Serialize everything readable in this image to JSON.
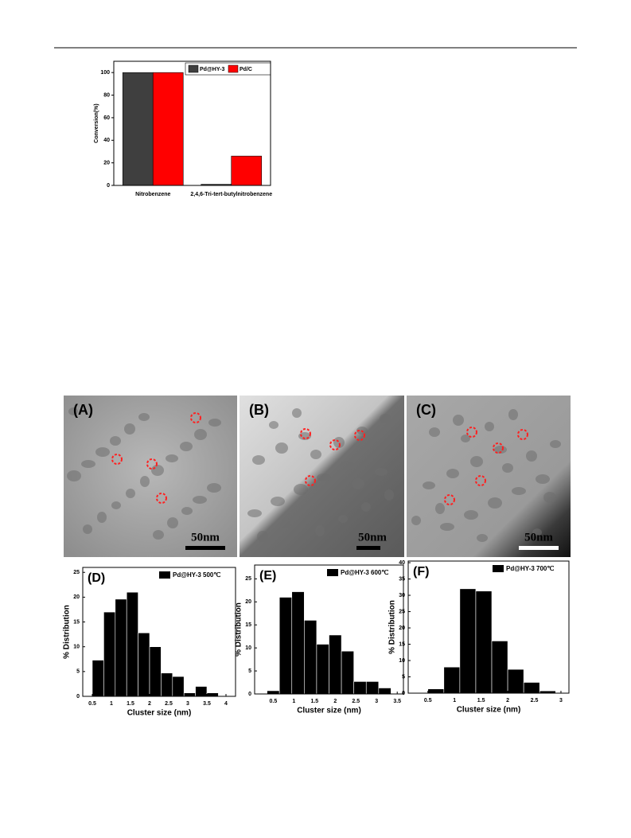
{
  "chart_data": [
    {
      "type": "bar",
      "ylabel": "Conversion(%)",
      "categories": [
        "Nitrobenzene",
        "2,4,6-Tri-tert-butylnitrobenzene"
      ],
      "series": [
        {
          "name": "Pd@HY-3",
          "color": "#3f3f3f",
          "values": [
            100,
            1
          ]
        },
        {
          "name": "Pd/C",
          "color": "#ff0000",
          "values": [
            100,
            26
          ]
        }
      ],
      "ylim": [
        0,
        110
      ],
      "yticks": [
        0,
        20,
        40,
        60,
        80,
        100
      ]
    },
    {
      "type": "histogram",
      "panel_label": "(D)",
      "legend": "Pd@HY-3 500℃",
      "color": "#000000",
      "xlabel": "Cluster size (nm)",
      "ylabel": "% Distribution",
      "bins": [
        0.5,
        0.8,
        1.1,
        1.4,
        1.7,
        2.0,
        2.3,
        2.6,
        2.9,
        3.2,
        3.5,
        3.8
      ],
      "values": [
        7.3,
        17,
        19.6,
        21,
        12.8,
        10,
        4.7,
        4,
        0.7,
        2,
        0.7
      ],
      "xlim": [
        0.25,
        4.25
      ],
      "xticks": [
        0.5,
        1.0,
        1.5,
        2.0,
        2.5,
        3.0,
        3.5,
        4.0
      ],
      "ylim": [
        0,
        26
      ],
      "yticks": [
        0,
        5,
        10,
        15,
        20,
        25
      ]
    },
    {
      "type": "histogram",
      "panel_label": "(E)",
      "legend": "Pd@HY-3 600℃",
      "color": "#000000",
      "xlabel": "Cluster size (nm)",
      "ylabel": "% Distribution",
      "bins": [
        0.35,
        0.65,
        0.95,
        1.25,
        1.55,
        1.85,
        2.15,
        2.45,
        2.75,
        3.05,
        3.35
      ],
      "values": [
        0.7,
        21,
        22.2,
        16,
        10.8,
        12.8,
        9.3,
        2.7,
        2.7,
        1.3
      ],
      "xlim": [
        0.05,
        3.65
      ],
      "xticks": [
        0.5,
        1.0,
        1.5,
        2.0,
        2.5,
        3.0,
        3.5
      ],
      "ylim": [
        0,
        28
      ],
      "yticks": [
        0,
        5,
        10,
        15,
        20,
        25
      ]
    },
    {
      "type": "histogram",
      "panel_label": "(F)",
      "legend": "Pd@HY-3 700℃",
      "color": "#000000",
      "xlabel": "Cluster size (nm)",
      "ylabel": "% Distribution",
      "bins": [
        0.5,
        0.8,
        1.1,
        1.4,
        1.7,
        2.0,
        2.3,
        2.6,
        2.9
      ],
      "values": [
        1.3,
        8,
        32,
        31.3,
        16,
        7.3,
        3.3,
        0.7
      ],
      "xlim": [
        0.13,
        3.15
      ],
      "xticks": [
        0.5,
        1.0,
        1.5,
        2.0,
        2.5,
        3.0
      ],
      "ylim": [
        0,
        40.5
      ],
      "yticks": [
        0,
        5,
        10,
        15,
        20,
        25,
        30,
        35,
        40
      ]
    }
  ],
  "images": [
    {
      "label": "(A)",
      "scale": "50nm"
    },
    {
      "label": "(B)",
      "scale": "50nm"
    },
    {
      "label": "(C)",
      "scale": "50nm"
    }
  ]
}
